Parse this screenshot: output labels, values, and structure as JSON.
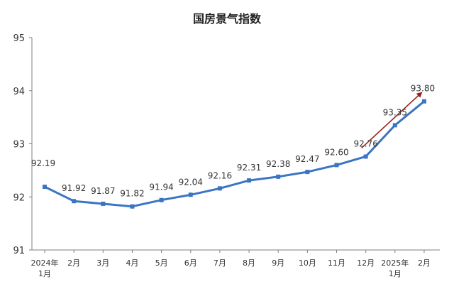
{
  "chart_data": {
    "type": "line",
    "title": "国房景气指数",
    "categories": [
      "2024年1月",
      "2月",
      "3月",
      "4月",
      "5月",
      "6月",
      "7月",
      "8月",
      "9月",
      "10月",
      "11月",
      "12月",
      "2025年1月",
      "2月"
    ],
    "category_lines": [
      [
        "2024年",
        "1月"
      ],
      [
        "2月"
      ],
      [
        "3月"
      ],
      [
        "4月"
      ],
      [
        "5月"
      ],
      [
        "6月"
      ],
      [
        "7月"
      ],
      [
        "8月"
      ],
      [
        "9月"
      ],
      [
        "10月"
      ],
      [
        "11月"
      ],
      [
        "12月"
      ],
      [
        "2025年",
        "1月"
      ],
      [
        "2月"
      ]
    ],
    "values": [
      92.19,
      91.92,
      91.87,
      91.82,
      91.94,
      92.04,
      92.16,
      92.31,
      92.38,
      92.47,
      92.6,
      92.76,
      93.35,
      93.8
    ],
    "value_labels": [
      "92.19",
      "91.92",
      "91.87",
      "91.82",
      "91.94",
      "92.04",
      "92.16",
      "92.31",
      "92.38",
      "92.47",
      "92.60",
      "92.76",
      "93.35",
      "93.80"
    ],
    "ylim": [
      91,
      95
    ],
    "yticks": [
      91,
      92,
      93,
      94,
      95
    ],
    "ytick_labels": [
      "91",
      "92",
      "93",
      "94",
      "95"
    ],
    "xlabel": "",
    "ylabel": "",
    "grid": false,
    "legend": "none",
    "colors": {
      "line": "#3a75c4",
      "arrow": "#9b1c1c",
      "axis": "#7f7f7f"
    },
    "trend_arrow": {
      "from_index": 11,
      "to_index": 13
    }
  }
}
